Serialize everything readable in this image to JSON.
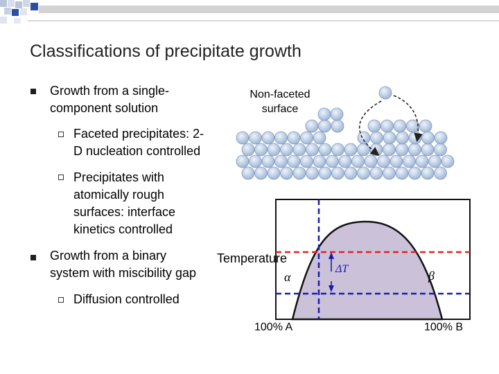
{
  "slide": {
    "title": "Classifications of precipitate growth",
    "bullets": [
      {
        "text": "Growth from a single-\ncomponent solution",
        "subs": [
          {
            "text": "Faceted precipitates: 2-\nD nucleation controlled"
          },
          {
            "text": "Precipitates with\natomically rough\nsurfaces: interface\nkinetics controlled"
          }
        ]
      },
      {
        "text": "Growth from a binary\nsystem with miscibility gap",
        "subs": [
          {
            "text": "Diffusion controlled"
          }
        ]
      }
    ]
  },
  "surface_figure": {
    "label": "Non-faceted\nsurface",
    "atom_color": "#c6d7ec"
  },
  "phase_diagram": {
    "ylabel": "Temperature",
    "x_left": "100% A",
    "x_right": "100% B",
    "phase_alpha": "α",
    "phase_beta": "β",
    "undercooling": "ΔT",
    "fill_color": "#cbc2d9",
    "dashed_red": "#e02020",
    "dashed_blue": "#1a1ab0"
  },
  "colors": {
    "deco_blue": "#2a4ea0",
    "deco_light": "#b8c4dc"
  }
}
